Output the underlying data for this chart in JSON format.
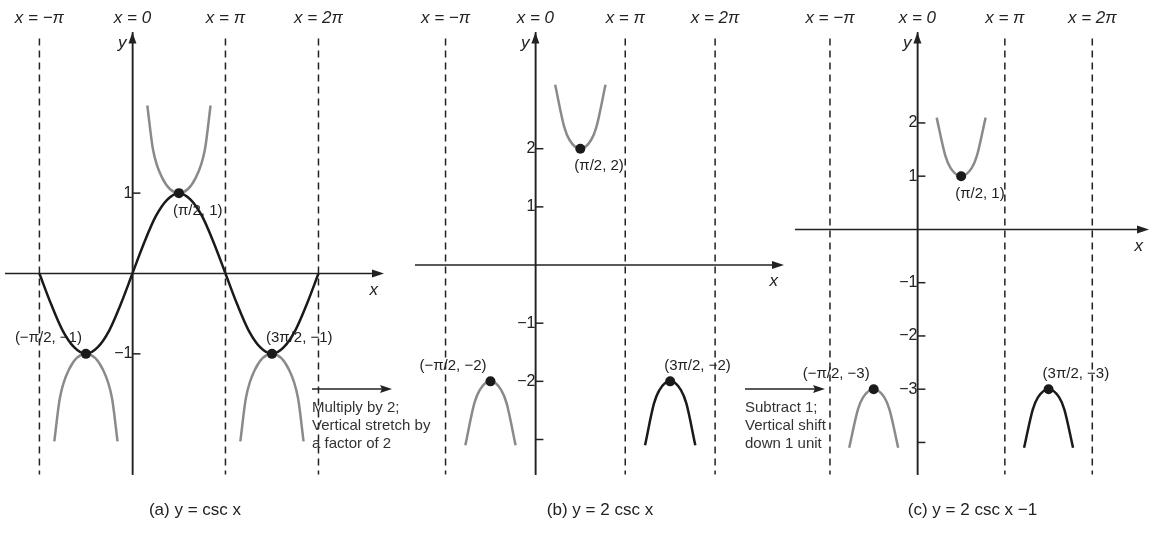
{
  "chart_data": [
    {
      "type": "line",
      "title": "(a) y = csc x",
      "xlabel": "x",
      "ylabel": "y",
      "xlim": [
        -1.37,
        2.64
      ],
      "xticks": [
        {
          "value": -1,
          "label": "x = −π"
        },
        {
          "value": 0,
          "label": "x = 0"
        },
        {
          "value": 1,
          "label": "x = π"
        },
        {
          "value": 2,
          "label": "x = 2π"
        }
      ],
      "ylim": [
        -2.5,
        3
      ],
      "yticks": [
        {
          "value": -1,
          "label": "−1"
        },
        {
          "value": 1,
          "label": "1"
        }
      ],
      "grid": false,
      "legend": false,
      "series": [
        {
          "type": "line",
          "color": "#1a1a1a",
          "x": [
            -1,
            -0.875,
            -0.75,
            -0.625,
            -0.5,
            -0.375,
            -0.25,
            -0.125,
            0,
            0.125,
            0.25,
            0.375,
            0.5,
            0.625,
            0.75,
            0.875,
            1,
            1.125,
            1.25,
            1.375,
            1.5,
            1.625,
            1.75,
            1.875,
            2
          ],
          "values": [
            0,
            -0.38,
            -0.71,
            -0.92,
            -1,
            -0.92,
            -0.71,
            -0.38,
            0,
            0.38,
            0.71,
            0.92,
            1,
            0.92,
            0.71,
            0.38,
            0,
            -0.38,
            -0.71,
            -0.92,
            -1,
            -0.92,
            -0.71,
            -0.38,
            0
          ]
        },
        {
          "type": "line",
          "color": "#8a8a8a",
          "x": [
            0.16,
            0.22,
            0.32,
            0.5,
            0.68,
            0.78,
            0.84
          ],
          "values": [
            2.09,
            1.55,
            1.19,
            1,
            1.19,
            1.55,
            2.09
          ]
        },
        {
          "type": "line",
          "color": "#8a8a8a",
          "x": [
            -0.84,
            -0.78,
            -0.68,
            -0.5,
            -0.32,
            -0.22,
            -0.16
          ],
          "values": [
            -2.09,
            -1.55,
            -1.19,
            -1,
            -1.19,
            -1.55,
            -2.09
          ]
        },
        {
          "type": "line",
          "color": "#8a8a8a",
          "x": [
            1.16,
            1.22,
            1.32,
            1.5,
            1.68,
            1.78,
            1.84
          ],
          "values": [
            -2.09,
            -1.55,
            -1.19,
            -1,
            -1.19,
            -1.55,
            -2.09
          ]
        },
        {
          "type": "scatter",
          "color": "#1a1a1a",
          "x": [
            -0.5,
            0.5,
            1.5
          ],
          "values": [
            -1,
            1,
            -1
          ]
        }
      ],
      "ref_lines": [
        {
          "axis": "x",
          "value": -1,
          "line_style": "dashed"
        },
        {
          "axis": "x",
          "value": 1,
          "line_style": "dashed"
        },
        {
          "axis": "x",
          "value": 2,
          "line_style": "dashed"
        }
      ],
      "annotations": [
        {
          "text": "(−π/2, −1)",
          "x": -0.5,
          "y": -1
        },
        {
          "text": "(π/2, 1)",
          "x": 0.5,
          "y": 1
        },
        {
          "text": "(3π/2, −1)",
          "x": 1.5,
          "y": -1
        }
      ]
    },
    {
      "type": "line",
      "title": "(b) y = 2 csc x",
      "xlabel": "x",
      "ylabel": "y",
      "xlim": [
        -1.34,
        2.7
      ],
      "xticks": [
        {
          "value": -1,
          "label": "x = −π"
        },
        {
          "value": 0,
          "label": "x = 0"
        },
        {
          "value": 1,
          "label": "x = π"
        },
        {
          "value": 2,
          "label": "x = 2π"
        }
      ],
      "ylim": [
        -3.6,
        4
      ],
      "yticks": [
        {
          "value": -3,
          "label": null
        },
        {
          "value": -2,
          "label": "−2"
        },
        {
          "value": -1,
          "label": "−1"
        },
        {
          "value": 1,
          "label": "1"
        },
        {
          "value": 2,
          "label": "2"
        }
      ],
      "grid": false,
      "legend": false,
      "series": [
        {
          "type": "line",
          "color": "#8a8a8a",
          "x": [
            0.22,
            0.32,
            0.38,
            0.5,
            0.62,
            0.68,
            0.78
          ],
          "values": [
            3.1,
            2.38,
            2.15,
            2,
            2.15,
            2.38,
            3.1
          ]
        },
        {
          "type": "line",
          "color": "#8a8a8a",
          "x": [
            -0.78,
            -0.68,
            -0.62,
            -0.5,
            -0.38,
            -0.32,
            -0.22
          ],
          "values": [
            -3.1,
            -2.38,
            -2.15,
            -2,
            -2.15,
            -2.38,
            -3.1
          ]
        },
        {
          "type": "line",
          "color": "#1a1a1a",
          "x": [
            1.22,
            1.32,
            1.38,
            1.5,
            1.62,
            1.68,
            1.78
          ],
          "values": [
            -3.1,
            -2.38,
            -2.15,
            -2,
            -2.15,
            -2.38,
            -3.1
          ]
        },
        {
          "type": "scatter",
          "color": "#1a1a1a",
          "x": [
            -0.5,
            0.5,
            1.5
          ],
          "values": [
            -2,
            2,
            -2
          ]
        }
      ],
      "ref_lines": [
        {
          "axis": "x",
          "value": -1,
          "line_style": "dashed"
        },
        {
          "axis": "x",
          "value": 1,
          "line_style": "dashed"
        },
        {
          "axis": "x",
          "value": 2,
          "line_style": "dashed"
        }
      ],
      "annotations": [
        "Multiply by 2; Vertical stretch by a factor of 2",
        {
          "text": "(−π/2, −2)",
          "x": -0.5,
          "y": -2
        },
        {
          "text": "(π/2, 2)",
          "x": 0.5,
          "y": 2
        },
        {
          "text": "(3π/2, −2)",
          "x": 1.5,
          "y": -2
        }
      ]
    },
    {
      "type": "line",
      "title": "(c) y = 2 csc x −1",
      "xlabel": "x",
      "ylabel": "y",
      "xlim": [
        -1.4,
        2.58
      ],
      "xticks": [
        {
          "value": -1,
          "label": "x = −π"
        },
        {
          "value": 0,
          "label": "x = 0"
        },
        {
          "value": 1,
          "label": "x = π"
        },
        {
          "value": 2,
          "label": "x = 2π"
        }
      ],
      "ylim": [
        -4.6,
        3.7
      ],
      "yticks": [
        {
          "value": -4,
          "label": null
        },
        {
          "value": -3,
          "label": "−3"
        },
        {
          "value": -2,
          "label": "−2"
        },
        {
          "value": -1,
          "label": "−1"
        },
        {
          "value": 1,
          "label": "1"
        },
        {
          "value": 2,
          "label": "2"
        }
      ],
      "grid": false,
      "legend": false,
      "series": [
        {
          "type": "line",
          "color": "#8a8a8a",
          "x": [
            0.22,
            0.32,
            0.38,
            0.5,
            0.62,
            0.68,
            0.78
          ],
          "values": [
            2.1,
            1.38,
            1.15,
            1,
            1.15,
            1.38,
            2.1
          ]
        },
        {
          "type": "line",
          "color": "#8a8a8a",
          "x": [
            -0.78,
            -0.68,
            -0.62,
            -0.5,
            -0.38,
            -0.32,
            -0.22
          ],
          "values": [
            -4.1,
            -3.38,
            -3.15,
            -3,
            -3.15,
            -3.38,
            -4.1
          ]
        },
        {
          "type": "line",
          "color": "#1a1a1a",
          "x": [
            1.22,
            1.32,
            1.38,
            1.5,
            1.62,
            1.68,
            1.78
          ],
          "values": [
            -4.1,
            -3.38,
            -3.15,
            -3,
            -3.15,
            -3.38,
            -4.1
          ]
        },
        {
          "type": "scatter",
          "color": "#1a1a1a",
          "x": [
            -0.5,
            0.5,
            1.5
          ],
          "values": [
            -3,
            1,
            -3
          ]
        }
      ],
      "ref_lines": [
        {
          "axis": "x",
          "value": -1,
          "line_style": "dashed"
        },
        {
          "axis": "x",
          "value": 1,
          "line_style": "dashed"
        },
        {
          "axis": "x",
          "value": 2,
          "line_style": "dashed"
        }
      ],
      "annotations": [
        "Subtract 1; Vertical shift down 1 unit",
        {
          "text": "(−π/2, −3)",
          "x": -0.5,
          "y": -3
        },
        {
          "text": "(π/2, 1)",
          "x": 0.5,
          "y": 1
        },
        {
          "text": "(3π/2, −3)",
          "x": 1.5,
          "y": -3
        }
      ]
    }
  ]
}
